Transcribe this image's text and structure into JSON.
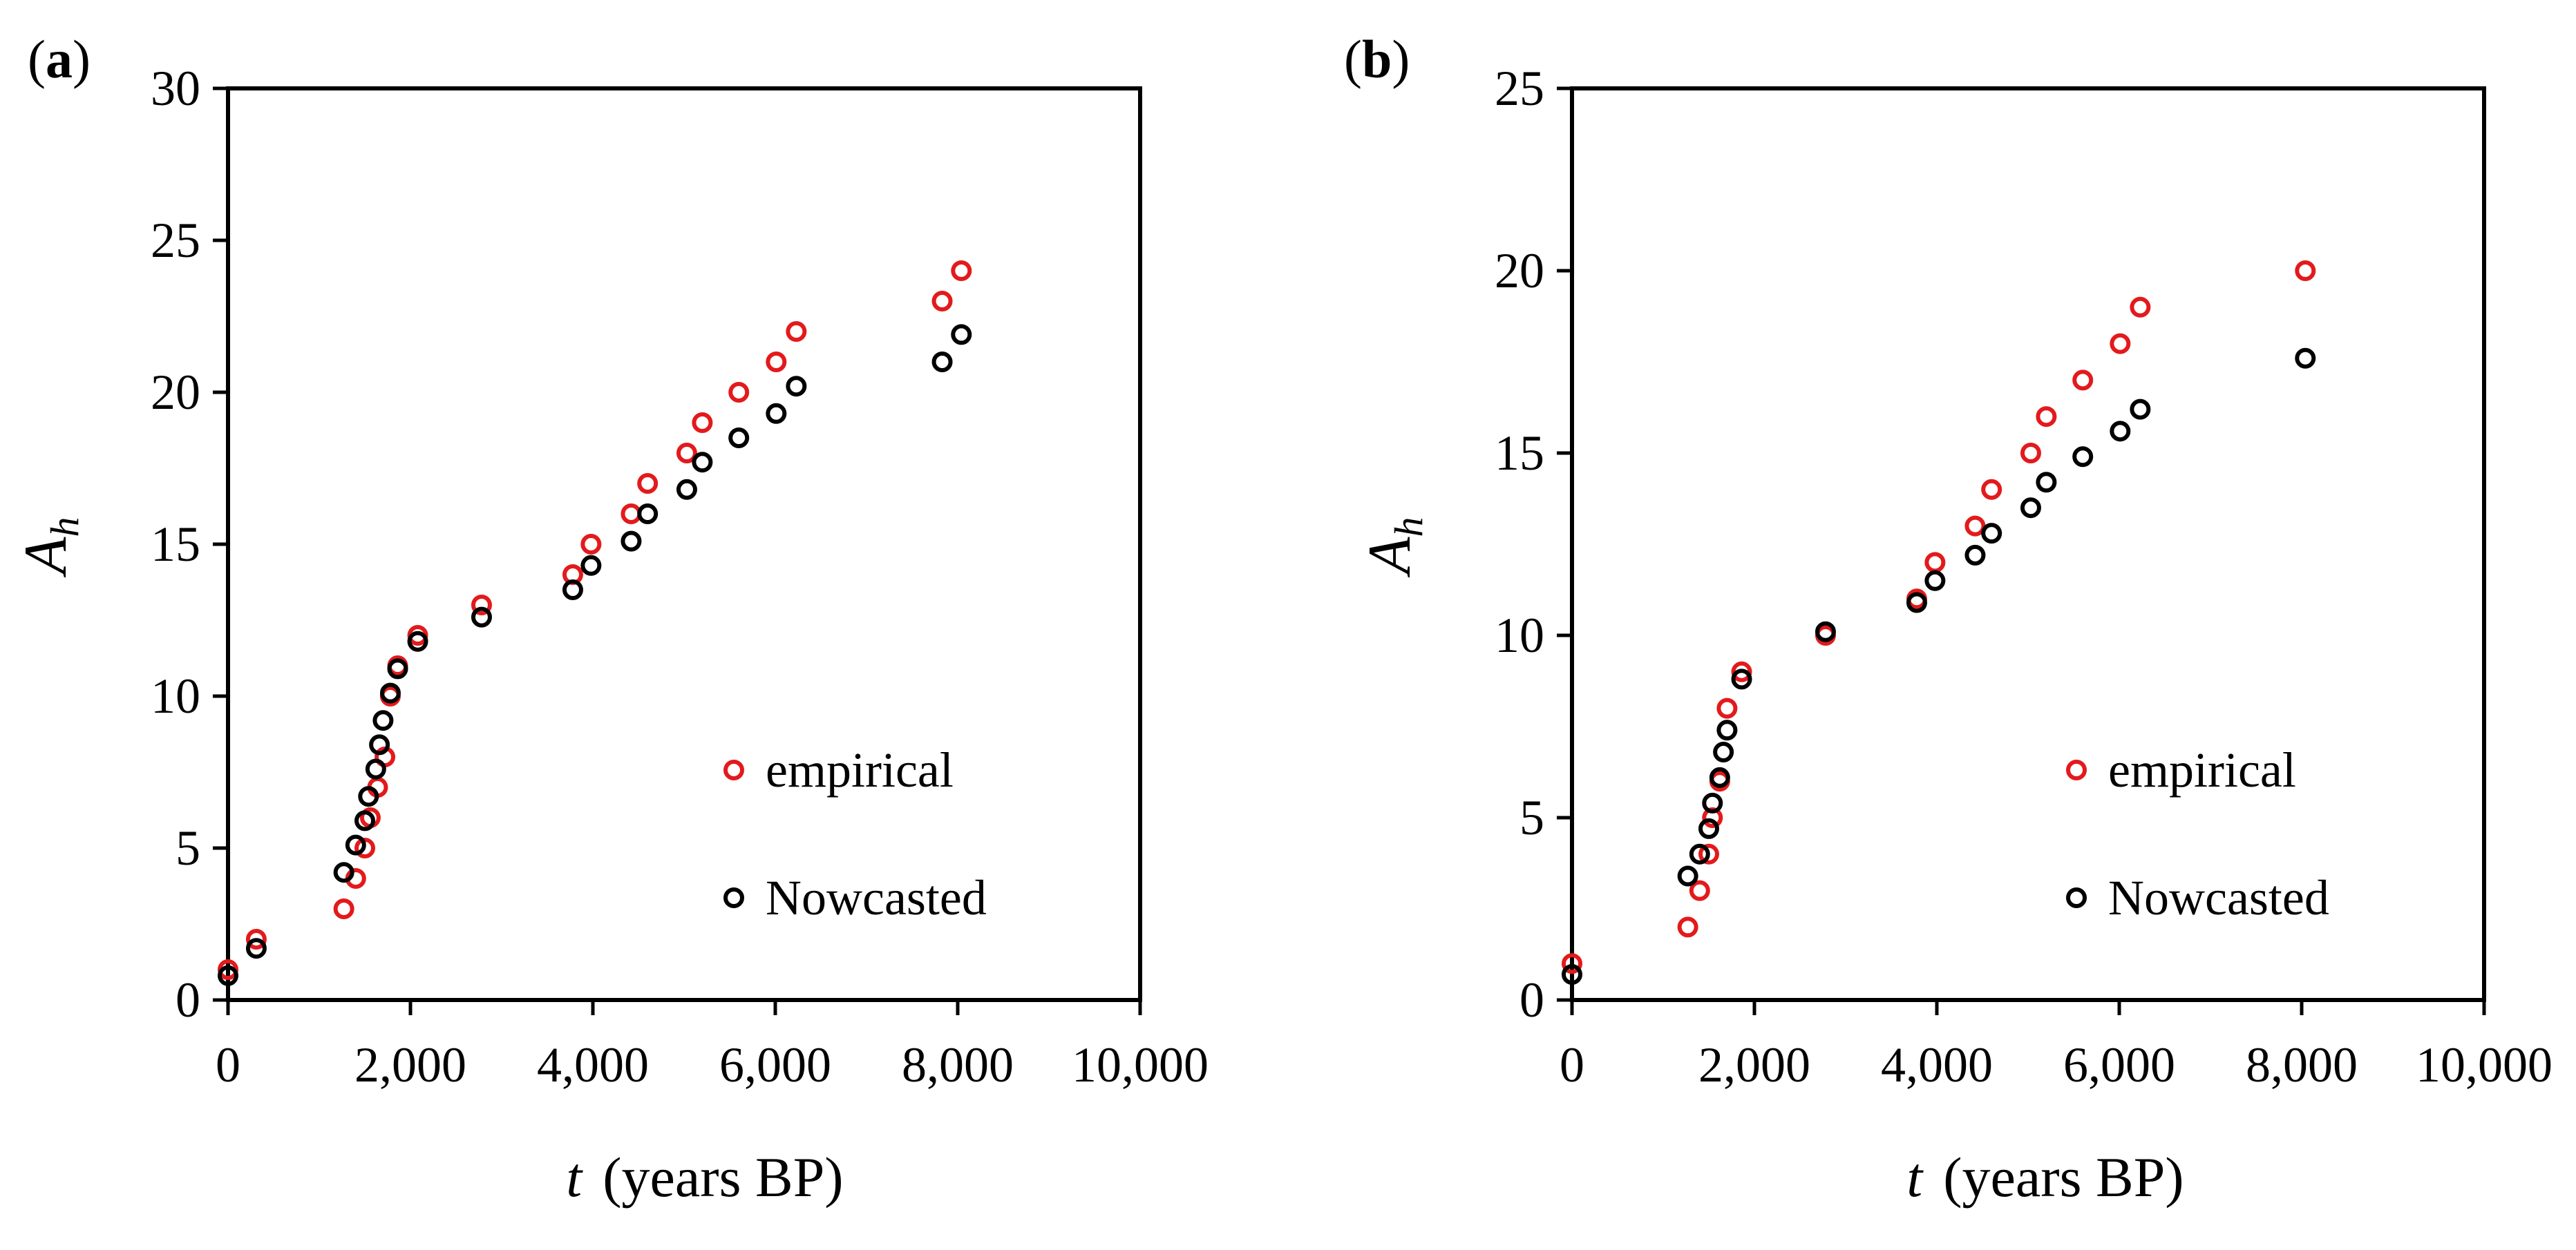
{
  "colors": {
    "empirical": "#e31a1c",
    "nowcasted": "#000000",
    "axis": "#000000"
  },
  "chart_data": [
    {
      "type": "scatter",
      "panel_label": "a",
      "xlabel_var": "t",
      "xlabel_unit": "(years BP)",
      "ylabel_main": "A",
      "ylabel_sub": "h",
      "xlim": [
        0,
        10000
      ],
      "ylim": [
        0,
        30
      ],
      "xticks": [
        0,
        2000,
        4000,
        6000,
        8000,
        10000
      ],
      "xtick_labels": [
        "0",
        "2,000",
        "4,000",
        "6,000",
        "8,000",
        "10,000"
      ],
      "yticks": [
        0,
        5,
        10,
        15,
        20,
        25,
        30
      ],
      "ytick_labels": [
        "0",
        "5",
        "10",
        "15",
        "20",
        "25",
        "30"
      ],
      "grid": false,
      "legend_position": "lower-right",
      "series": [
        {
          "name": "empirical",
          "color": "#e31a1c",
          "x": [
            0,
            310,
            1270,
            1400,
            1500,
            1560,
            1640,
            1720,
            1780,
            1860,
            2080,
            2780,
            3780,
            3980,
            4420,
            4600,
            5030,
            5200,
            5600,
            6010,
            6230,
            7830,
            8040
          ],
          "y": [
            1,
            2,
            3,
            4,
            5,
            6,
            7,
            8,
            10,
            11,
            12,
            13,
            14,
            15,
            16,
            17,
            18,
            19,
            20,
            21,
            22,
            23,
            24
          ]
        },
        {
          "name": "Nowcasted",
          "color": "#000000",
          "x": [
            0,
            310,
            1270,
            1400,
            1500,
            1540,
            1620,
            1660,
            1700,
            1780,
            1860,
            2080,
            2780,
            3780,
            3980,
            4420,
            4600,
            5030,
            5200,
            5600,
            6010,
            6230,
            7830,
            8040
          ],
          "y": [
            0.8,
            1.7,
            4.2,
            5.1,
            5.9,
            6.7,
            7.6,
            8.4,
            9.2,
            10.1,
            10.9,
            11.8,
            12.6,
            13.5,
            14.3,
            15.1,
            16.0,
            16.8,
            17.7,
            18.5,
            19.3,
            20.2,
            21.0,
            21.9
          ]
        }
      ]
    },
    {
      "type": "scatter",
      "panel_label": "b",
      "xlabel_var": "t",
      "xlabel_unit": "(years BP)",
      "ylabel_main": "A",
      "ylabel_sub": "h",
      "xlim": [
        0,
        10000
      ],
      "ylim": [
        0,
        25
      ],
      "xticks": [
        0,
        2000,
        4000,
        6000,
        8000,
        10000
      ],
      "xtick_labels": [
        "0",
        "2,000",
        "4,000",
        "6,000",
        "8,000",
        "10,000"
      ],
      "yticks": [
        0,
        5,
        10,
        15,
        20,
        25
      ],
      "ytick_labels": [
        "0",
        "5",
        "10",
        "15",
        "20",
        "25"
      ],
      "grid": false,
      "legend_position": "lower-right",
      "series": [
        {
          "name": "empirical",
          "color": "#e31a1c",
          "x": [
            0,
            1270,
            1400,
            1500,
            1540,
            1620,
            1700,
            1860,
            2780,
            3780,
            3980,
            4420,
            4600,
            5030,
            5200,
            5600,
            6010,
            6230,
            8040
          ],
          "y": [
            1,
            2,
            3,
            4,
            5,
            6,
            8,
            9,
            10,
            11,
            12,
            13,
            14,
            15,
            16,
            17,
            18,
            19,
            20
          ]
        },
        {
          "name": "Nowcasted",
          "color": "#000000",
          "x": [
            0,
            1270,
            1400,
            1500,
            1540,
            1620,
            1660,
            1700,
            1860,
            2780,
            3780,
            3980,
            4420,
            4600,
            5030,
            5200,
            5600,
            6010,
            6230,
            8040
          ],
          "y": [
            0.7,
            3.4,
            4.0,
            4.7,
            5.4,
            6.1,
            6.8,
            7.4,
            8.8,
            10.1,
            10.9,
            11.5,
            12.2,
            12.8,
            13.5,
            14.2,
            14.9,
            15.6,
            16.2,
            17.6
          ]
        }
      ]
    }
  ]
}
